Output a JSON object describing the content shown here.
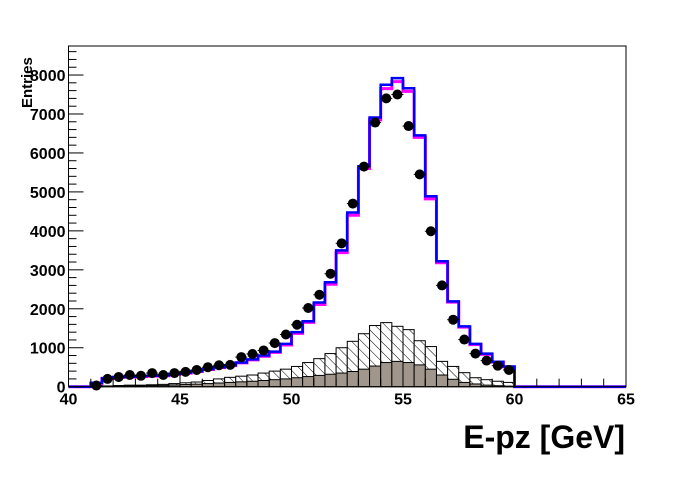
{
  "chart_data": {
    "type": "bar",
    "histogram": true,
    "title": "",
    "xlabel": "E-pz [GeV]",
    "ylabel": "Entries",
    "xlim": [
      40,
      65
    ],
    "ylim": [
      0,
      8745
    ],
    "bin_width": 0.5,
    "x_ticks": [
      40,
      45,
      50,
      55,
      60,
      65
    ],
    "y_ticks": [
      0,
      1000,
      2000,
      3000,
      4000,
      5000,
      6000,
      7000,
      8000
    ],
    "grid": false,
    "legend": "none",
    "x": [
      41.25,
      41.75,
      42.25,
      42.75,
      43.25,
      43.75,
      44.25,
      44.75,
      45.25,
      45.75,
      46.25,
      46.75,
      47.25,
      47.75,
      48.25,
      48.75,
      49.25,
      49.75,
      50.25,
      50.75,
      51.25,
      51.75,
      52.25,
      52.75,
      53.25,
      53.75,
      54.25,
      54.75,
      55.25,
      55.75,
      56.25,
      56.75,
      57.25,
      57.75,
      58.25,
      58.75,
      59.25,
      59.75
    ],
    "series": [
      {
        "style": "hatched",
        "color": "#000000",
        "values": [
          10,
          20,
          30,
          40,
          40,
          50,
          60,
          80,
          100,
          120,
          160,
          200,
          240,
          270,
          300,
          350,
          400,
          450,
          520,
          620,
          720,
          850,
          1000,
          1165,
          1360,
          1570,
          1645,
          1550,
          1465,
          1180,
          1030,
          650,
          520,
          360,
          230,
          180,
          140,
          110
        ]
      },
      {
        "style": "filled",
        "color": "#a0968c",
        "values": [
          5,
          10,
          15,
          20,
          25,
          30,
          35,
          45,
          55,
          65,
          80,
          95,
          110,
          125,
          140,
          160,
          180,
          200,
          230,
          260,
          290,
          320,
          350,
          390,
          450,
          530,
          620,
          650,
          620,
          560,
          450,
          300,
          190,
          110,
          70,
          40,
          25,
          15
        ]
      },
      {
        "style": "step",
        "color": "#ff00ff",
        "values": [
          80,
          210,
          240,
          250,
          260,
          270,
          280,
          320,
          350,
          390,
          440,
          490,
          540,
          610,
          690,
          780,
          880,
          1070,
          1370,
          1650,
          2110,
          2630,
          3440,
          4400,
          5600,
          6850,
          7650,
          7830,
          7580,
          6400,
          4820,
          3180,
          2170,
          1530,
          1080,
          830,
          630,
          510
        ]
      },
      {
        "style": "step",
        "color": "#0000ff",
        "values": [
          100,
          220,
          250,
          260,
          270,
          280,
          290,
          330,
          360,
          400,
          450,
          500,
          550,
          620,
          700,
          800,
          900,
          1100,
          1400,
          1680,
          2160,
          2680,
          3500,
          4470,
          5660,
          6910,
          7750,
          7920,
          7660,
          6450,
          4890,
          3220,
          2190,
          1550,
          1100,
          850,
          640,
          520
        ]
      },
      {
        "style": "points",
        "color": "#000000",
        "values": [
          30,
          200,
          250,
          300,
          280,
          350,
          300,
          350,
          380,
          430,
          500,
          550,
          560,
          760,
          840,
          930,
          1120,
          1340,
          1590,
          2020,
          2360,
          2900,
          3680,
          4700,
          5650,
          6780,
          7400,
          7500,
          6690,
          5450,
          3990,
          2600,
          1720,
          1210,
          850,
          670,
          540,
          430
        ]
      }
    ]
  }
}
